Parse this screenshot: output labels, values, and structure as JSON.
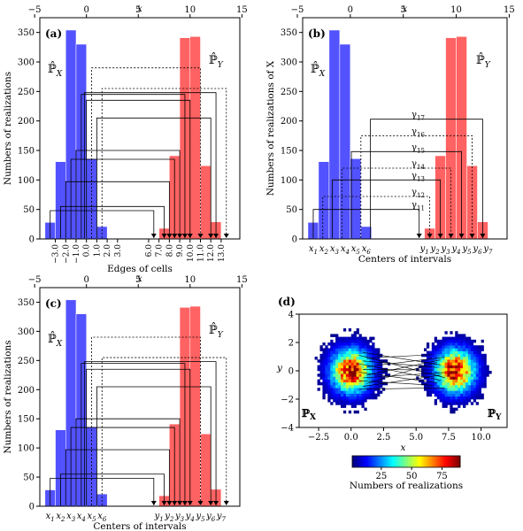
{
  "chart_data": [
    {
      "panel": "(a)",
      "type": "bar",
      "title": "",
      "top_xlabel": "x",
      "top_xticks": [
        "−5",
        "0",
        "5",
        "10",
        "15"
      ],
      "xlabel": "Edges of cells",
      "ylabel": "Numbers of realizations",
      "yticks": [
        "0",
        "50",
        "100",
        "150",
        "200",
        "250",
        "300",
        "350"
      ],
      "xlim": [
        -4.5,
        14.8
      ],
      "ylim": [
        0,
        375
      ],
      "edge_labels": [
        "−3.0",
        "−2.0",
        "−1.0",
        "0.0",
        "1.0",
        "2.0",
        "3.0",
        "6.0",
        "7.0",
        "8.0",
        "9.0",
        "10.0",
        "11.0",
        "12.0",
        "13.0"
      ],
      "legend": [
        {
          "name": "ℙ̂X",
          "color": "#4040ff"
        },
        {
          "name": "ℙ̂Y",
          "color": "#ff5050"
        }
      ],
      "series": [
        {
          "name": "ℙ̂X",
          "color": "#3a3aff",
          "bins": [
            [
              -4,
              -3,
              28
            ],
            [
              -3,
              -2,
              131
            ],
            [
              -2,
              -1,
              354
            ],
            [
              -1,
              0,
              330
            ],
            [
              0,
              1,
              136
            ],
            [
              1,
              2,
              21
            ]
          ]
        },
        {
          "name": "ℙ̂Y",
          "color": "#ff4c4c",
          "bins": [
            [
              7,
              8,
              18
            ],
            [
              8,
              9,
              141
            ],
            [
              9,
              10,
              341
            ],
            [
              10,
              11,
              343
            ],
            [
              11,
              12,
              124
            ],
            [
              12,
              13,
              29
            ]
          ]
        }
      ],
      "transport_links": [
        {
          "from": -3.5,
          "to": 6.5,
          "height": 48,
          "dashed": false
        },
        {
          "from": -2.5,
          "to": 7.5,
          "height": 55,
          "dashed": false
        },
        {
          "from": -2.0,
          "to": 8.0,
          "height": 97,
          "dashed": false
        },
        {
          "from": -1.5,
          "to": 8.5,
          "height": 135,
          "dashed": false
        },
        {
          "from": -1.0,
          "to": 9.0,
          "height": 150,
          "dashed": false
        },
        {
          "from": -0.5,
          "to": 9.5,
          "height": 245,
          "dashed": false
        },
        {
          "from": 0.0,
          "to": 10.0,
          "height": 235,
          "dashed": false
        },
        {
          "from": 0.5,
          "to": 11.0,
          "height": 290,
          "dashed": true
        },
        {
          "from": 1.0,
          "to": 12.0,
          "height": 205,
          "dashed": false
        },
        {
          "from": -0.2,
          "to": 12.5,
          "height": 248,
          "dashed": false
        },
        {
          "from": 1.5,
          "to": 13.5,
          "height": 255,
          "dashed": true
        }
      ]
    },
    {
      "panel": "(b)",
      "type": "bar",
      "title": "",
      "top_xlabel": "x",
      "top_xticks": [
        "−5",
        "0",
        "5",
        "10",
        "15"
      ],
      "xlabel": "Centers of intervals",
      "ylabel": "Numbers of realizations of X",
      "yticks": [
        "0",
        "50",
        "100",
        "150",
        "200",
        "250",
        "300",
        "350"
      ],
      "xlim": [
        -4.5,
        14.8
      ],
      "ylim": [
        0,
        375
      ],
      "center_labels": [
        "x1",
        "x2",
        "x3",
        "x4",
        "x5",
        "x6",
        "y1",
        "y2",
        "y3",
        "y4",
        "y5",
        "y6",
        "y7"
      ],
      "legend": [
        {
          "name": "ℙ̂X",
          "color": "#4040ff"
        },
        {
          "name": "ℙ̂Y",
          "color": "#ff5050"
        }
      ],
      "series": [
        {
          "name": "ℙ̂X",
          "color": "#3a3aff",
          "bins": [
            [
              -4,
              -3,
              28
            ],
            [
              -3,
              -2,
              131
            ],
            [
              -2,
              -1,
              354
            ],
            [
              -1,
              0,
              330
            ],
            [
              0,
              1,
              136
            ],
            [
              1,
              2,
              21
            ]
          ]
        },
        {
          "name": "ℙ̂Y",
          "color": "#ff4c4c",
          "bins": [
            [
              7,
              8,
              18
            ],
            [
              8,
              9,
              141
            ],
            [
              9,
              10,
              341
            ],
            [
              10,
              11,
              343
            ],
            [
              11,
              12,
              124
            ],
            [
              12,
              13,
              29
            ]
          ]
        }
      ],
      "gamma_labels": [
        {
          "name": "γ11",
          "height": 50
        },
        {
          "name": "γ12",
          "height": 72
        },
        {
          "name": "γ13",
          "height": 100
        },
        {
          "name": "γ14",
          "height": 120
        },
        {
          "name": "γ15",
          "height": 148
        },
        {
          "name": "γ16",
          "height": 175
        },
        {
          "name": "γ17",
          "height": 203
        }
      ]
    },
    {
      "panel": "(c)",
      "type": "bar",
      "title": "",
      "top_xlabel": "x",
      "top_xticks": [
        "−5",
        "0",
        "5",
        "10",
        "15"
      ],
      "xlabel": "Centers of intervals",
      "ylabel": "Numbers of realizations",
      "yticks": [
        "0",
        "50",
        "100",
        "150",
        "200",
        "250",
        "300",
        "350"
      ],
      "xlim": [
        -4.5,
        14.8
      ],
      "ylim": [
        0,
        375
      ],
      "center_labels": [
        "x1",
        "x2",
        "x3",
        "x4",
        "x5",
        "x6",
        "y1",
        "y2",
        "y3",
        "y4",
        "y5",
        "y6",
        "y7"
      ],
      "legend": [
        {
          "name": "ℙ̂X",
          "color": "#4040ff"
        },
        {
          "name": "ℙ̂Y",
          "color": "#ff5050"
        }
      ],
      "series": [
        {
          "name": "ℙ̂X",
          "color": "#3a3aff",
          "bins": [
            [
              -4,
              -3,
              28
            ],
            [
              -3,
              -2,
              131
            ],
            [
              -2,
              -1,
              354
            ],
            [
              -1,
              0,
              330
            ],
            [
              0,
              1,
              136
            ],
            [
              1,
              2,
              21
            ]
          ]
        },
        {
          "name": "ℙ̂Y",
          "color": "#ff4c4c",
          "bins": [
            [
              7,
              8,
              18
            ],
            [
              8,
              9,
              141
            ],
            [
              9,
              10,
              341
            ],
            [
              10,
              11,
              343
            ],
            [
              11,
              12,
              124
            ],
            [
              12,
              13,
              29
            ]
          ]
        }
      ]
    },
    {
      "panel": "(d)",
      "type": "heatmap",
      "title": "",
      "xlabel": "x",
      "ylabel": "y",
      "xlim": [
        -4,
        12
      ],
      "ylim": [
        -4,
        4
      ],
      "xticks": [
        "−2.5",
        "0.0",
        "2.5",
        "5.0",
        "7.5",
        "10.0"
      ],
      "yticks": [
        "−4",
        "−2",
        "0",
        "2",
        "4"
      ],
      "cluster_labels": [
        "ℙX",
        "ℙY"
      ],
      "clusters": [
        {
          "name": "ℙX",
          "center": [
            0,
            0
          ],
          "spread": 1.0
        },
        {
          "name": "ℙY",
          "center": [
            8,
            0
          ],
          "spread": 1.0
        }
      ],
      "colorbar": {
        "label": "Numbers of realizations",
        "ticks": [
          "25",
          "50",
          "75"
        ],
        "range": [
          1,
          90
        ]
      }
    }
  ]
}
